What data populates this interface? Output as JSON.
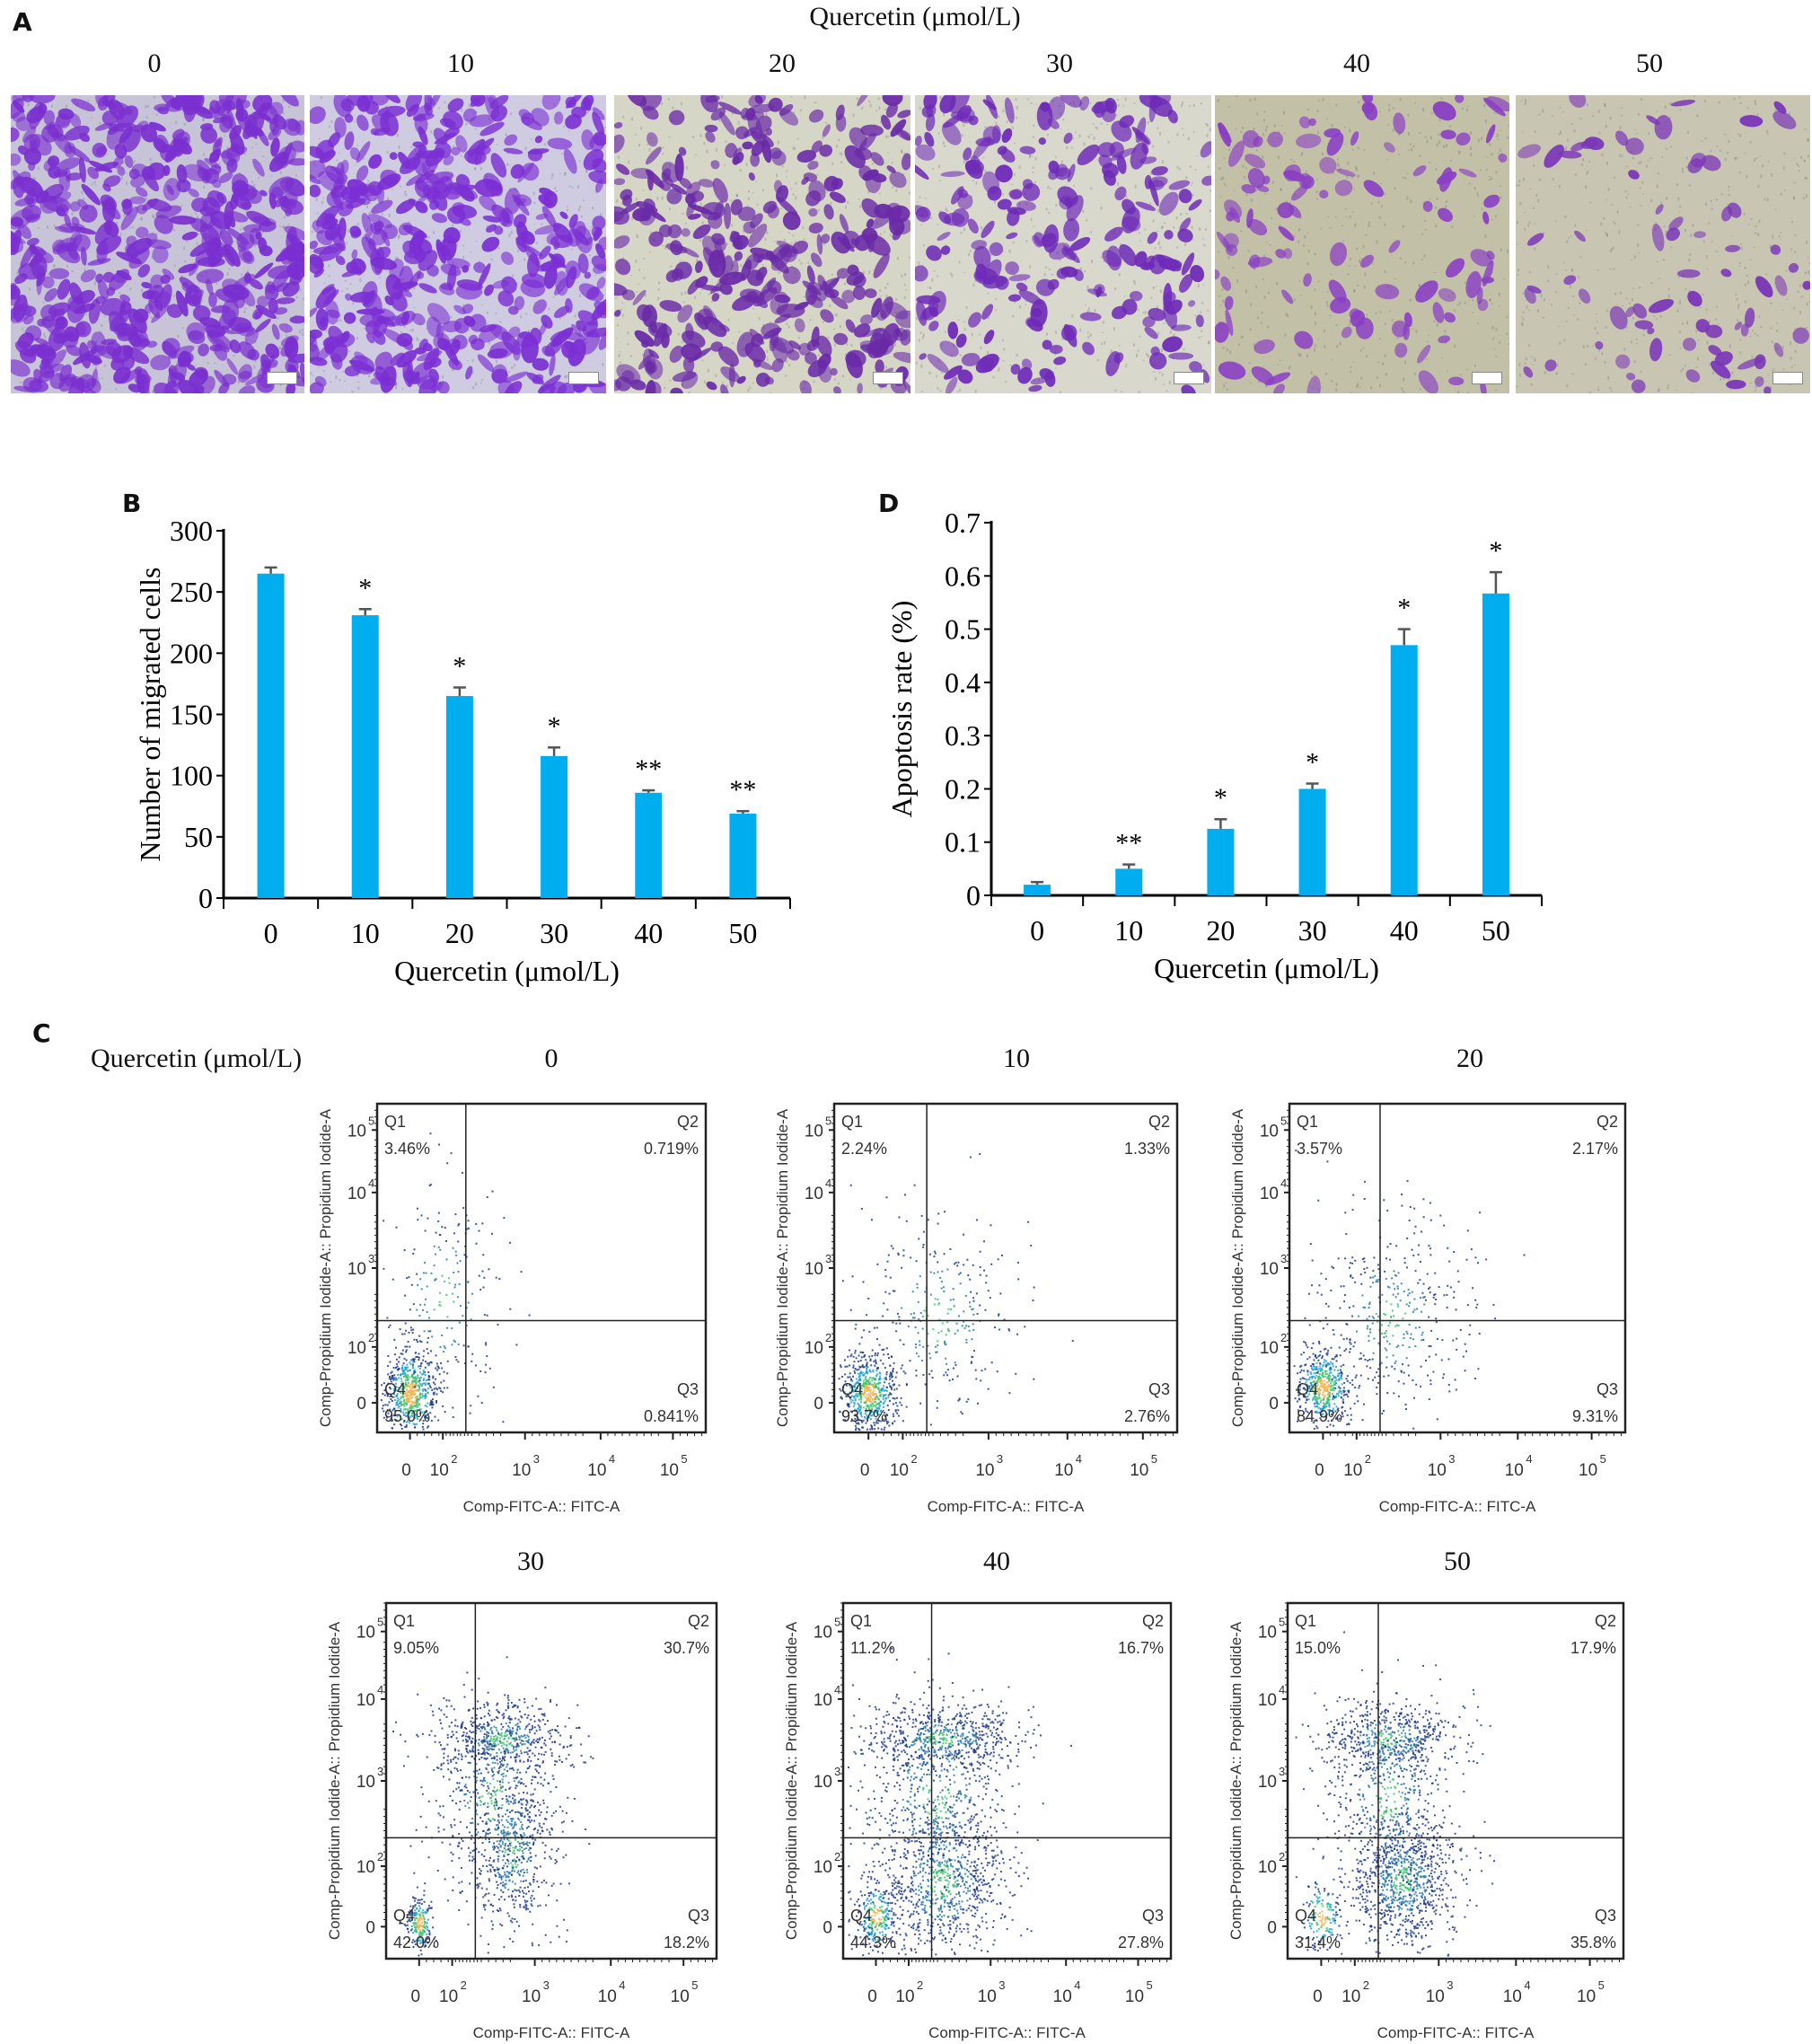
{
  "panel_a": {
    "letter": "A",
    "title": "Quercetin (μmol/L)",
    "columns": [
      {
        "label": "0",
        "tone": "#c8c4d8",
        "stain": "#7a2fd0",
        "density": 0.62
      },
      {
        "label": "10",
        "tone": "#cfcbe0",
        "stain": "#7b2fd4",
        "density": 0.5
      },
      {
        "label": "20",
        "tone": "#d6d6c6",
        "stain": "#6a2aa8",
        "density": 0.38
      },
      {
        "label": "30",
        "tone": "#d8d8cc",
        "stain": "#6e2ab8",
        "density": 0.25
      },
      {
        "label": "40",
        "tone": "#c2c0a6",
        "stain": "#8a3ec4",
        "density": 0.12
      },
      {
        "label": "50",
        "tone": "#c8c6b2",
        "stain": "#7a34b8",
        "density": 0.08
      }
    ]
  },
  "chart_data": [
    {
      "id": "B",
      "type": "bar",
      "letter": "B",
      "title": "",
      "xlabel": "Quercetin (μmol/L)",
      "ylabel": "Number of migrated cells",
      "categories": [
        "0",
        "10",
        "20",
        "30",
        "40",
        "50"
      ],
      "values": [
        265,
        231,
        165,
        116,
        86,
        69
      ],
      "errors": [
        5,
        5,
        7,
        7,
        2,
        2
      ],
      "significance": [
        "",
        "*",
        "*",
        "*",
        "**",
        "**"
      ],
      "ylim": [
        0,
        300
      ],
      "yticks": [
        0,
        50,
        100,
        150,
        200,
        250,
        300
      ],
      "ytick_labels": [
        "0",
        "50",
        "100",
        "150",
        "200",
        "250",
        "300"
      ],
      "color": "#00aeef",
      "error_color": "#555555",
      "grid": false
    },
    {
      "id": "D",
      "type": "bar",
      "letter": "D",
      "title": "",
      "xlabel": "Quercetin (μmol/L)",
      "ylabel": "Apoptosis rate (%)",
      "categories": [
        "0",
        "10",
        "20",
        "30",
        "40",
        "50"
      ],
      "values": [
        0.02,
        0.05,
        0.125,
        0.2,
        0.47,
        0.567
      ],
      "errors": [
        0.005,
        0.008,
        0.018,
        0.01,
        0.03,
        0.04
      ],
      "significance": [
        "",
        "**",
        "*",
        "*",
        "*",
        "*"
      ],
      "ylim": [
        0,
        0.7
      ],
      "yticks": [
        0,
        0.1,
        0.2,
        0.3,
        0.4,
        0.5,
        0.6,
        0.7
      ],
      "ytick_labels": [
        "0",
        "0.1",
        "0.2",
        "0.3",
        "0.4",
        "0.5",
        "0.6",
        "0.7"
      ],
      "color": "#00aeef",
      "error_color": "#555555",
      "grid": false
    },
    {
      "id": "C",
      "type": "scatter",
      "letter": "C",
      "row_label": "Quercetin (μmol/L)",
      "xlabel": "Comp-FITC-A:: FITC-A",
      "ylabel": "Comp-Propidium Iodide-A:: Propidium Iodide-A",
      "xtick_labels": [
        "0",
        "10",
        "10",
        "10",
        "10"
      ],
      "xtick_exponents": [
        "",
        "2",
        "3",
        "4",
        "5"
      ],
      "ytick_labels": [
        "0",
        "10",
        "10",
        "10",
        "10"
      ],
      "ytick_exponents": [
        "",
        "2",
        "3",
        "4",
        "5"
      ],
      "quadrant_names": [
        "Q1",
        "Q2",
        "Q3",
        "Q4"
      ],
      "panels": [
        {
          "concentration": "0",
          "Q1": "3.46%",
          "Q2": "0.719%",
          "Q3": "0.841%",
          "Q4": "95.0%"
        },
        {
          "concentration": "10",
          "Q1": "2.24%",
          "Q2": "1.33%",
          "Q3": "2.76%",
          "Q4": "93.7%"
        },
        {
          "concentration": "20",
          "Q1": "3.57%",
          "Q2": "2.17%",
          "Q3": "9.31%",
          "Q4": "84.9%"
        },
        {
          "concentration": "30",
          "Q1": "9.05%",
          "Q2": "30.7%",
          "Q3": "18.2%",
          "Q4": "42.0%"
        },
        {
          "concentration": "40",
          "Q1": "11.2%",
          "Q2": "16.7%",
          "Q3": "27.8%",
          "Q4": "44.3%"
        },
        {
          "concentration": "50",
          "Q1": "15.0%",
          "Q2": "17.9%",
          "Q3": "35.8%",
          "Q4": "31.4%"
        }
      ]
    }
  ]
}
